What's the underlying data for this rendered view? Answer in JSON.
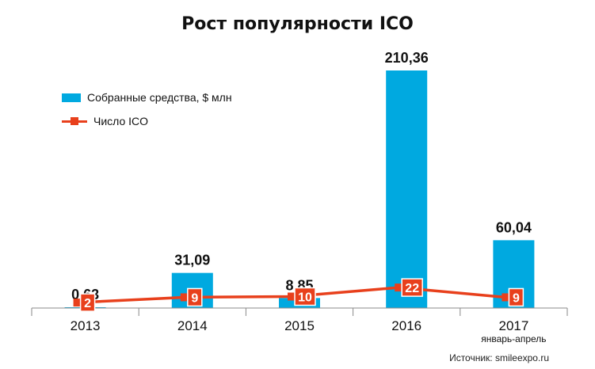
{
  "chart_data": {
    "type": "bar",
    "title": "Рост популярности ICO",
    "categories": [
      "2013",
      "2014",
      "2015",
      "2016",
      "2017"
    ],
    "category_sublabels": [
      "",
      "",
      "",
      "",
      "январь-апрель"
    ],
    "series": [
      {
        "name": "Собранные средства, $ млн",
        "type": "bar",
        "values": [
          0.63,
          31.09,
          8.85,
          210.36,
          60.04
        ],
        "labels": [
          "0,63",
          "31,09",
          "8,85",
          "210,36",
          "60,04"
        ],
        "color": "#00a9e0"
      },
      {
        "name": "Число ICO",
        "type": "line",
        "values": [
          2,
          9,
          10,
          22,
          9
        ],
        "labels": [
          "2",
          "9",
          "10",
          "22",
          "9"
        ],
        "color": "#e8401c"
      }
    ],
    "legend_position": "top-left",
    "grid": false
  },
  "source": "Источник: smileexpo.ru"
}
